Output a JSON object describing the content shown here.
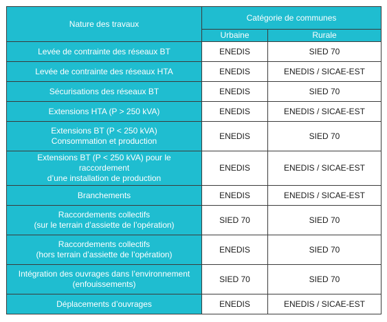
{
  "table": {
    "header": {
      "nature": "Nature des travaux",
      "categorie": "Catégorie de communes",
      "urbaine": "Urbaine",
      "rurale": "Rurale"
    },
    "rows": [
      {
        "nature": [
          "Levée de contrainte des réseaux BT"
        ],
        "urbaine": "ENEDIS",
        "rurale": "SIED 70"
      },
      {
        "nature": [
          "Levée de contrainte des réseaux HTA"
        ],
        "urbaine": "ENEDIS",
        "rurale": "ENEDIS / SICAE-EST"
      },
      {
        "nature": [
          "Sécurisations des réseaux BT"
        ],
        "urbaine": "ENEDIS",
        "rurale": "SIED 70"
      },
      {
        "nature": [
          "Extensions HTA (P > 250 kVA)"
        ],
        "urbaine": "ENEDIS",
        "rurale": "ENEDIS / SICAE-EST"
      },
      {
        "nature": [
          "Extensions BT (P < 250 kVA)",
          "Consommation et production"
        ],
        "urbaine": "ENEDIS",
        "rurale": "SIED 70"
      },
      {
        "nature": [
          "Extensions BT (P < 250 kVA) pour le raccordement",
          "d’une installation de production"
        ],
        "urbaine": "ENEDIS",
        "rurale": "ENEDIS / SICAE-EST"
      },
      {
        "nature": [
          "Branchements"
        ],
        "urbaine": "ENEDIS",
        "rurale": "ENEDIS / SICAE-EST"
      },
      {
        "nature": [
          "Raccordements collectifs",
          "(sur le terrain d’assiette de l’opération)"
        ],
        "urbaine": "SIED 70",
        "rurale": "SIED 70"
      },
      {
        "nature": [
          "Raccordements collectifs",
          "(hors terrain d’assiette de l’opération)"
        ],
        "urbaine": "ENEDIS",
        "rurale": "SIED 70"
      },
      {
        "nature": [
          "Intégration des ouvrages dans l’environnement",
          "(enfouissements)"
        ],
        "urbaine": "SIED 70",
        "rurale": "SIED 70"
      },
      {
        "nature": [
          "Déplacements d’ouvrages"
        ],
        "urbaine": "ENEDIS",
        "rurale": "ENEDIS / SICAE-EST"
      }
    ],
    "colors": {
      "header_bg": "#1fbdd0",
      "header_text": "#ffffff",
      "cell_text": "#1a1a1a",
      "border": "#3a3a3a"
    }
  }
}
